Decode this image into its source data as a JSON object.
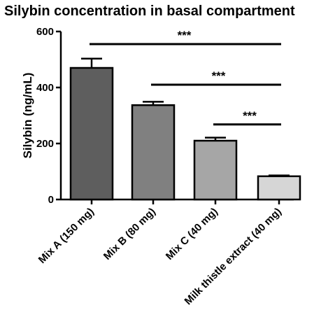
{
  "chart_data": {
    "type": "bar",
    "title": "Silybin concentration in basal compartment",
    "ylabel": "Silybin (ng/mL)",
    "xlabel": "",
    "ylim": [
      0,
      600
    ],
    "yticks": [
      0,
      200,
      400,
      600
    ],
    "categories": [
      "Mix A (150 mg)",
      "Mix B (80 mg)",
      "Mix C (40 mg)",
      "Milk thistle extract (40 mg)"
    ],
    "values": [
      470,
      337,
      210,
      83
    ],
    "errors": [
      33,
      12,
      11,
      3
    ],
    "bar_colors": [
      "#5e5e5e",
      "#808080",
      "#a6a6a6",
      "#d6d6d6"
    ],
    "grid": false,
    "significance": [
      {
        "from": 0,
        "to": 3,
        "label": "***",
        "y": 555
      },
      {
        "from": 1,
        "to": 3,
        "label": "***",
        "y": 410
      },
      {
        "from": 2,
        "to": 3,
        "label": "***",
        "y": 268
      }
    ]
  }
}
